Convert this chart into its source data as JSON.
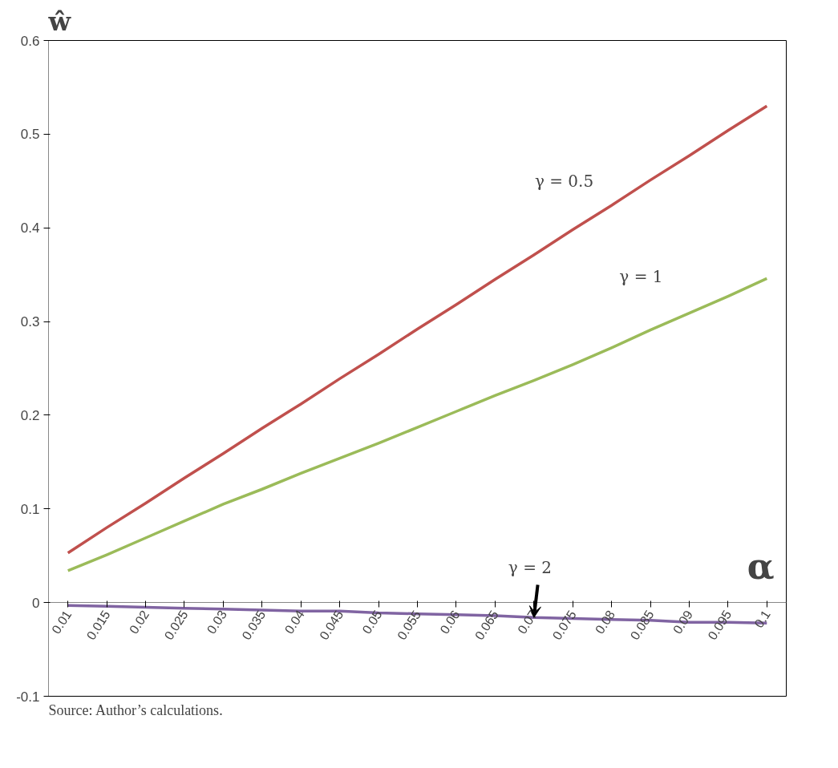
{
  "chart_data": {
    "type": "line",
    "xlabel": "α",
    "ylabel": "ŵ",
    "categories": [
      "0.01",
      "0.015",
      "0.02",
      "0.025",
      "0.03",
      "0.035",
      "0.04",
      "0.045",
      "0.05",
      "0.055",
      "0.06",
      "0.065",
      "0.07",
      "0.075",
      "0.08",
      "0.085",
      "0.09",
      "0.095",
      "0.1"
    ],
    "series": [
      {
        "color": "#c0504d",
        "values": [
          0.053,
          0.08,
          0.106,
          0.133,
          0.159,
          0.186,
          0.212,
          0.239,
          0.265,
          0.292,
          0.318,
          0.345,
          0.371,
          0.398,
          0.424,
          0.451,
          0.477,
          0.504,
          0.53
        ]
      },
      {
        "color": "#9bbb59",
        "values": [
          0.034,
          0.051,
          0.069,
          0.087,
          0.105,
          0.121,
          0.138,
          0.154,
          0.17,
          0.187,
          0.204,
          0.221,
          0.237,
          0.254,
          0.272,
          0.291,
          0.309,
          0.327,
          0.346
        ]
      },
      {
        "color": "#8064a2",
        "values": [
          -0.003,
          -0.004,
          -0.005,
          -0.006,
          -0.007,
          -0.008,
          -0.009,
          -0.009,
          -0.011,
          -0.012,
          -0.013,
          -0.014,
          -0.016,
          -0.017,
          -0.018,
          -0.019,
          -0.021,
          -0.021,
          -0.022
        ]
      }
    ],
    "ylim": [
      -0.1,
      0.6
    ],
    "yticks": [
      -0.1,
      0,
      0.1,
      0.2,
      0.3,
      0.4,
      0.5,
      0.6
    ],
    "grid": false,
    "annotations": [
      "γ = 0.5",
      "γ = 1",
      {
        "text": "γ = 2",
        "x": "0.07",
        "y": -0.016
      },
      "Source: Author’s calculations."
    ]
  }
}
